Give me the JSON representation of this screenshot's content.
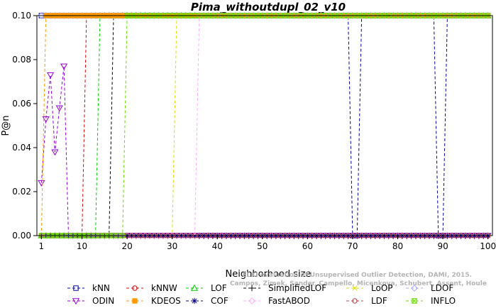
{
  "chart_data": {
    "type": "line",
    "title": "Pima_withoutdupl_02_v10",
    "xlabel": "Neighborhood size",
    "ylabel": "P@n",
    "xlim": [
      0,
      101
    ],
    "ylim": [
      0,
      0.1
    ],
    "xticks": [
      1,
      10,
      20,
      30,
      40,
      50,
      60,
      70,
      80,
      90,
      100
    ],
    "yticks": [
      0.0,
      0.02,
      0.04,
      0.06,
      0.08,
      0.1
    ],
    "ytick_labels": [
      "0.00",
      "0.02",
      "0.04",
      "0.06",
      "0.08",
      "0.10"
    ],
    "grid": false,
    "legend_position": "bottom",
    "watermark": [
      "ELKI evaluation of Unsupervised Outlier Detection, DAMI, 2015.",
      "Campos, Zimek, Sander, Campello, Micenkova, Schubert, Assent, Houle"
    ],
    "series": [
      {
        "name": "kNN",
        "color": "#0000aa",
        "marker": "square",
        "x": [
          1,
          2,
          3,
          68,
          69,
          70,
          71,
          72,
          73,
          87,
          88,
          89,
          90,
          91,
          100
        ],
        "y": [
          0.1,
          0.1,
          0.1,
          0.1,
          0.1,
          0.0,
          0.0,
          0.1,
          0.1,
          0.1,
          0.1,
          0.0,
          0.0,
          0.1,
          0.1
        ]
      },
      {
        "name": "kNNW",
        "color": "#dd0000",
        "marker": "circle",
        "x": [
          1,
          9,
          10,
          11,
          12,
          100
        ],
        "y": [
          0.0,
          0.0,
          0.0,
          0.1,
          0.1,
          0.1
        ]
      },
      {
        "name": "LOF",
        "color": "#00cc00",
        "marker": "triangle-up",
        "x": [
          1,
          12,
          13,
          14,
          15,
          100
        ],
        "y": [
          0.0,
          0.0,
          0.0,
          0.1,
          0.1,
          0.1
        ]
      },
      {
        "name": "SimplifiedLOF",
        "color": "#000000",
        "marker": "plus",
        "x": [
          1,
          15,
          16,
          17,
          18,
          100
        ],
        "y": [
          0.0,
          0.0,
          0.0,
          0.1,
          0.1,
          0.1
        ]
      },
      {
        "name": "LoOP",
        "color": "#dddd00",
        "marker": "x",
        "x": [
          1,
          29,
          30,
          31,
          32,
          100
        ],
        "y": [
          0.0,
          0.0,
          0.0,
          0.1,
          0.1,
          0.1
        ]
      },
      {
        "name": "LDOF",
        "color": "#aaaaff",
        "marker": "diamond",
        "x": [
          1,
          2,
          3,
          100
        ],
        "y": [
          0.1,
          0.1,
          0.1,
          0.1
        ]
      },
      {
        "name": "ODIN",
        "color": "#9900dd",
        "marker": "triangle-down",
        "x": [
          1,
          2,
          3,
          4,
          5,
          6,
          7,
          8,
          100
        ],
        "y": [
          0.024,
          0.053,
          0.073,
          0.038,
          0.058,
          0.077,
          0.0,
          0.0,
          0.0
        ]
      },
      {
        "name": "KDEOS",
        "color": "#ff9900",
        "marker": "square-filled",
        "x": [
          1,
          2,
          3,
          4,
          100
        ],
        "y": [
          0.0,
          0.1,
          0.1,
          0.1,
          0.1
        ]
      },
      {
        "name": "COF",
        "color": "#000088",
        "marker": "star",
        "x": [
          1,
          100
        ],
        "y": [
          0.0,
          0.0
        ]
      },
      {
        "name": "FastABOD",
        "color": "#ffaaff",
        "marker": "diamond",
        "x": [
          1,
          34,
          35,
          36,
          37,
          100
        ],
        "y": [
          0.0,
          0.0,
          0.0,
          0.1,
          0.1,
          0.1
        ]
      },
      {
        "name": "LDF",
        "color": "#bb4444",
        "marker": "circle",
        "x": [
          1,
          100
        ],
        "y": [
          0.0,
          0.0
        ]
      },
      {
        "name": "INFLO",
        "color": "#66dd00",
        "marker": "hash",
        "x": [
          1,
          18,
          19,
          20,
          21,
          100
        ],
        "y": [
          0.0,
          0.0,
          0.0,
          0.1,
          0.1,
          0.1
        ]
      }
    ]
  }
}
